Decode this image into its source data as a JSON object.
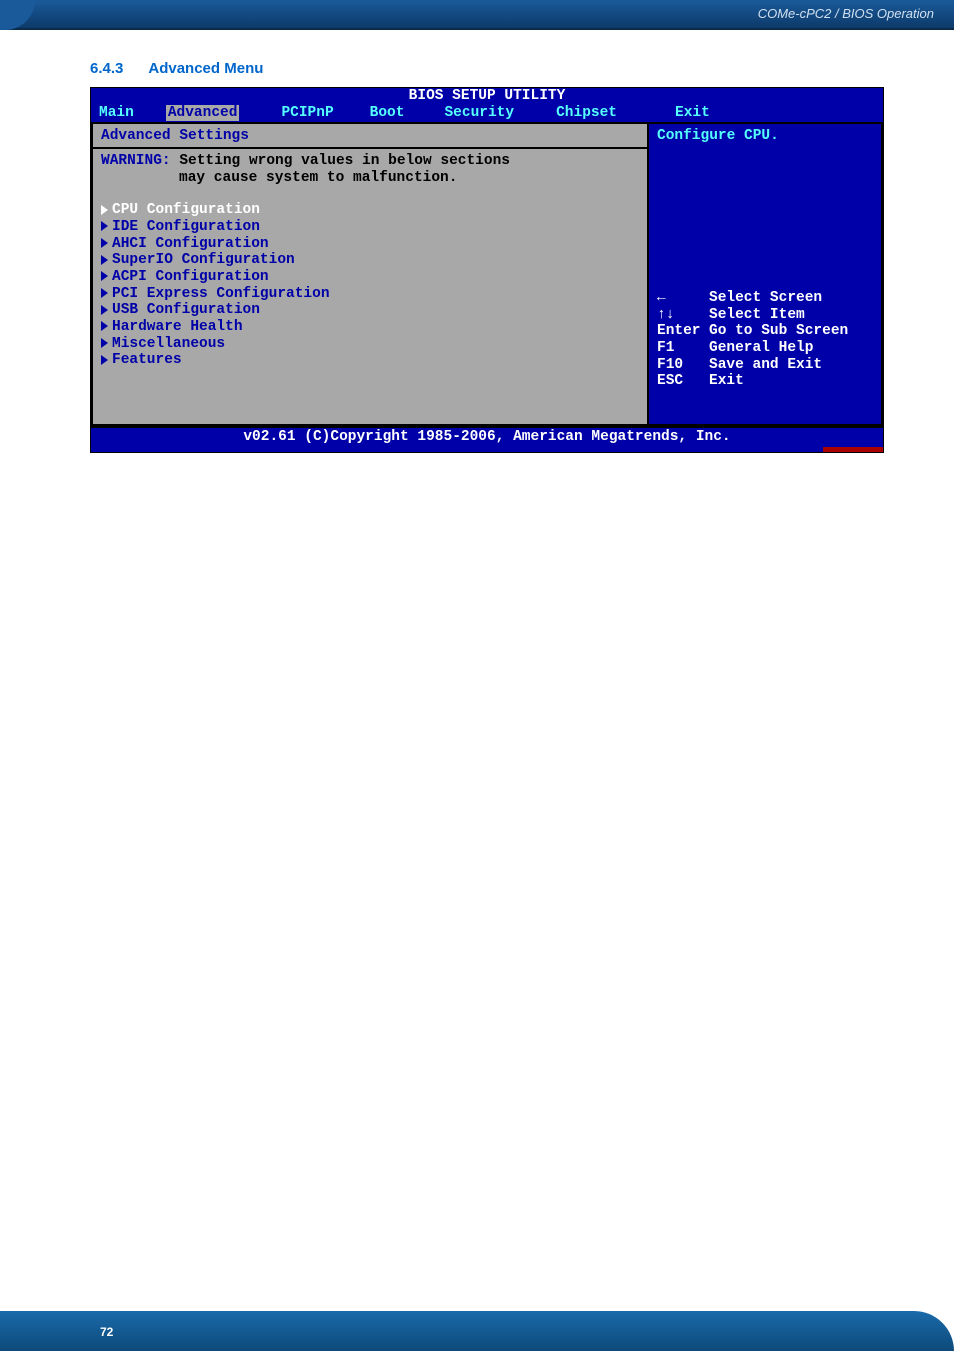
{
  "header": {
    "label": "COMe-cPC2 / BIOS Operation"
  },
  "section": {
    "number": "6.4.3",
    "title": "Advanced Menu"
  },
  "bios": {
    "title": "BIOS SETUP UTILITY",
    "menu": {
      "items": [
        "Main",
        "Advanced",
        "PCIPnP",
        "Boot",
        "Security",
        "Chipset",
        "Exit"
      ],
      "selected_index": 1
    },
    "left": {
      "heading": "Advanced Settings",
      "warning_label": "WARNING:",
      "warning_line1": "Setting wrong values in below sections",
      "warning_line2": "may cause system to malfunction.",
      "config_items": [
        "CPU Configuration",
        "IDE Configuration",
        "AHCI Configuration",
        "SuperIO Configuration",
        "ACPI Configuration",
        "PCI Express Configuration",
        "USB Configuration",
        "Hardware Health",
        "Miscellaneous",
        "Features"
      ],
      "highlighted_index": 0
    },
    "right": {
      "help_text": "Configure CPU.",
      "keys": [
        {
          "key": "←",
          "desc": "Select Screen"
        },
        {
          "key": "↑↓",
          "desc": "Select Item"
        },
        {
          "key": "Enter",
          "desc": "Go to Sub Screen"
        },
        {
          "key": "F1",
          "desc": "General Help"
        },
        {
          "key": "F10",
          "desc": "Save and Exit"
        },
        {
          "key": "ESC",
          "desc": "Exit"
        }
      ]
    },
    "footer": "v02.61 (C)Copyright 1985-2006, American Megatrends, Inc."
  },
  "page_number": "72",
  "colors": {
    "header_blue": "#1a5a9a",
    "heading_blue": "#0066cc",
    "bios_blue": "#0000a8",
    "bios_gray": "#a8a8a8",
    "bios_cyan": "#55ffff",
    "bios_red": "#aa0000"
  }
}
